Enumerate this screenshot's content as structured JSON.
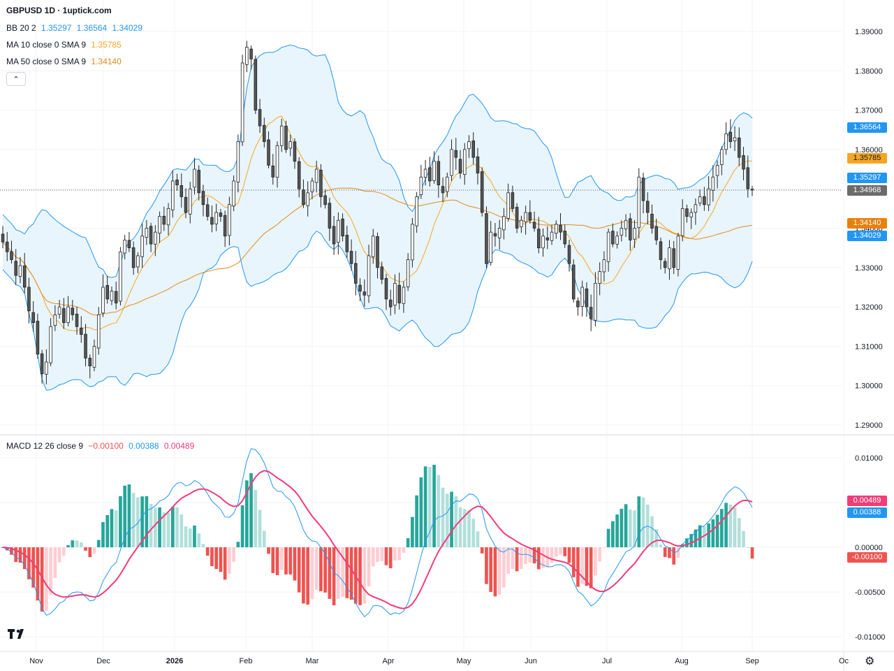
{
  "header": {
    "title": "GBPUSD 1D · 1uptick.com"
  },
  "legend": {
    "bb": {
      "label": "BB 20 2",
      "basis": "1.35297",
      "upper": "1.36564",
      "lower": "1.34029"
    },
    "ma10": {
      "label": "MA 10 close 0 SMA 9",
      "value": "1.35785"
    },
    "ma50": {
      "label": "MA 50 close 0 SMA 9",
      "value": "1.34140"
    },
    "macd": {
      "label": "MACD 12 26 close 9",
      "hist": "−0.00100",
      "macd": "0.00388",
      "signal": "0.00489"
    }
  },
  "price_tags": {
    "bb_upper": "1.36564",
    "ma10": "1.35785",
    "bb_basis": "1.35297",
    "last": "1.34968",
    "ma50": "1.34140",
    "bb_lower": "1.34029",
    "macd_signal": "0.00489",
    "macd_line": "0.00388",
    "macd_hist": "-0.00100"
  },
  "colors": {
    "up": "#ffffff",
    "down": "#555555",
    "wick": "#222222",
    "bb_line": "#2196f3",
    "bb_fill": "#e3f2fd",
    "ma10": "#f5a623",
    "ma50": "#e08a1e",
    "macd_line": "#2196f3",
    "signal_line": "#f23c78",
    "hist_up_strong": "#26a69a",
    "hist_up_weak": "#b2dfdb",
    "hist_down_strong": "#ef5350",
    "hist_down_weak": "#ffcdd2",
    "tag_blue": "#2196f3",
    "tag_orange": "#f5a623",
    "tag_dark_orange": "#e8810c",
    "tag_gray": "#6b6b6b",
    "tag_pink": "#f23c78",
    "tag_red": "#ef5350"
  },
  "icons": {
    "logo": "tradingview-logo-icon",
    "settings": "gear-icon",
    "collapse": "chevron-up-icon"
  },
  "chart_data": [
    {
      "type": "candlestick",
      "title": "GBPUSD 1D",
      "ylim": [
        1.285,
        1.392
      ],
      "y_ticks": [
        "1.39000",
        "1.38000",
        "1.37000",
        "1.36000",
        "1.35000",
        "1.34000",
        "1.33000",
        "1.32000",
        "1.31000",
        "1.30000",
        "1.29000"
      ],
      "x_ticks": [
        "Nov",
        "Dec",
        "2026",
        "Feb",
        "Mar",
        "Apr",
        "May",
        "Jun",
        "Jul",
        "Aug",
        "Sep",
        "Oc"
      ],
      "grid": true,
      "last_close": 1.34968,
      "closes": [
        1.3365,
        1.334,
        1.332,
        1.328,
        1.3305,
        1.325,
        1.319,
        1.316,
        1.308,
        1.303,
        1.306,
        1.315,
        1.318,
        1.32,
        1.316,
        1.32,
        1.318,
        1.315,
        1.313,
        1.307,
        1.305,
        1.31,
        1.318,
        1.325,
        1.322,
        1.324,
        1.321,
        1.334,
        1.337,
        1.335,
        1.33,
        1.333,
        1.338,
        1.34,
        1.336,
        1.339,
        1.343,
        1.341,
        1.345,
        1.352,
        1.351,
        1.348,
        1.344,
        1.35,
        1.355,
        1.349,
        1.346,
        1.343,
        1.341,
        1.344,
        1.343,
        1.338,
        1.346,
        1.352,
        1.362,
        1.382,
        1.386,
        1.383,
        1.37,
        1.366,
        1.362,
        1.356,
        1.353,
        1.361,
        1.366,
        1.36,
        1.362,
        1.357,
        1.35,
        1.346,
        1.349,
        1.352,
        1.355,
        1.348,
        1.346,
        1.34,
        1.336,
        1.342,
        1.338,
        1.334,
        1.331,
        1.326,
        1.324,
        1.323,
        1.333,
        1.338,
        1.33,
        1.327,
        1.322,
        1.32,
        1.326,
        1.321,
        1.325,
        1.332,
        1.341,
        1.348,
        1.353,
        1.355,
        1.352,
        1.357,
        1.351,
        1.349,
        1.353,
        1.36,
        1.358,
        1.354,
        1.36,
        1.362,
        1.358,
        1.354,
        1.344,
        1.331,
        1.339,
        1.338,
        1.34,
        1.343,
        1.349,
        1.345,
        1.34,
        1.342,
        1.344,
        1.342,
        1.34,
        1.335,
        1.338,
        1.337,
        1.339,
        1.341,
        1.339,
        1.336,
        1.331,
        1.322,
        1.32,
        1.325,
        1.32,
        1.317,
        1.326,
        1.329,
        1.332,
        1.339,
        1.336,
        1.338,
        1.34,
        1.342,
        1.337,
        1.34,
        1.353,
        1.347,
        1.344,
        1.34,
        1.337,
        1.332,
        1.33,
        1.335,
        1.33,
        1.338,
        1.345,
        1.343,
        1.344,
        1.346,
        1.348,
        1.346,
        1.35,
        1.353,
        1.356,
        1.36,
        1.364,
        1.362,
        1.363,
        1.358,
        1.355,
        1.35,
        1.3497
      ],
      "indicators": {
        "bb_basis_last": 1.35297,
        "bb_upper_last": 1.36564,
        "bb_lower_last": 1.34029,
        "ma10_last": 1.35785,
        "ma50_last": 1.3414
      }
    },
    {
      "type": "bar",
      "title": "MACD 12 26 close 9",
      "ylim": [
        -0.0107,
        0.011
      ],
      "y_ticks": [
        "0.01000",
        "0.00500",
        "0.00000",
        "-0.00500",
        "-0.01000"
      ],
      "series": [
        {
          "name": "MACD",
          "last": 0.00388
        },
        {
          "name": "Signal",
          "last": 0.00489
        },
        {
          "name": "Histogram",
          "last": -0.001
        }
      ]
    }
  ]
}
